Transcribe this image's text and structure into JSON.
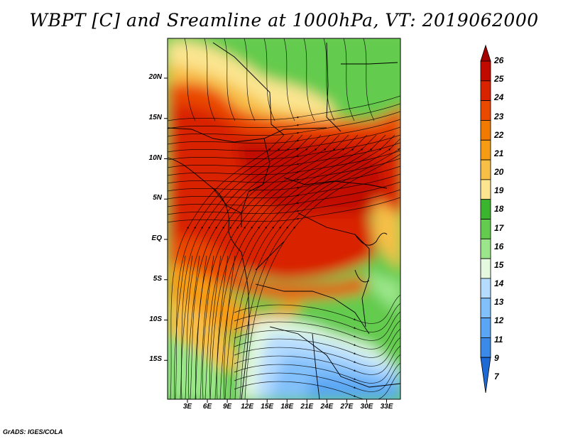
{
  "title": "WBPT [C] and Sreamline at 1000hPa, VT: 2019062000",
  "credit": "GrADS: IGES/COLA",
  "map": {
    "lat_labels": [
      "20N",
      "15N",
      "10N",
      "5N",
      "EQ",
      "5S",
      "10S",
      "15S"
    ],
    "lat_values": [
      20,
      15,
      10,
      5,
      0,
      -5,
      -10,
      -15
    ],
    "lon_labels": [
      "3E",
      "6E",
      "9E",
      "12E",
      "15E",
      "18E",
      "21E",
      "24E",
      "27E",
      "30E",
      "33E"
    ],
    "lon_values": [
      3,
      6,
      9,
      12,
      15,
      18,
      21,
      24,
      27,
      30,
      33
    ]
  },
  "colorbar": {
    "labels": [
      "26",
      "25",
      "24",
      "23",
      "22",
      "21",
      "20",
      "19",
      "18",
      "17",
      "16",
      "15",
      "14",
      "13",
      "12",
      "11",
      "9",
      "7"
    ],
    "colors": [
      "#a50000",
      "#c00a00",
      "#d92300",
      "#ea4a00",
      "#f17a00",
      "#f59c14",
      "#f7bf46",
      "#fbe590",
      "#3cb52e",
      "#63cb4d",
      "#9be68a",
      "#e4f9e0",
      "#b5dbff",
      "#82c0fb",
      "#5aa6f4",
      "#3b8ae8",
      "#1d6ad6"
    ]
  }
}
